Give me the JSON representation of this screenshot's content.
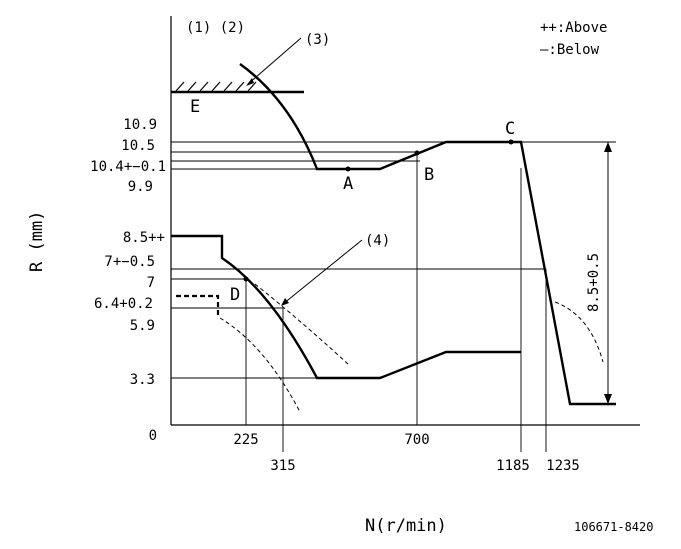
{
  "header": {
    "left": "(1) (2)",
    "callout_3": "(3)",
    "callout_4": "(4)"
  },
  "legend": {
    "above": "++:Above",
    "below": "—:Below"
  },
  "axes": {
    "y_title": "R (mm)",
    "x_title": "N(r/min)",
    "origin": "0"
  },
  "y_labels": [
    "10.9",
    "10.5",
    "10.4+−0.1",
    "9.9",
    "8.5++",
    "7+−0.5",
    "7",
    "6.4+0.2",
    "5.9",
    "3.3"
  ],
  "x_labels": [
    "225",
    "315",
    "700",
    "1185",
    "1235"
  ],
  "points": {
    "A": "A",
    "B": "B",
    "C": "C",
    "D": "D",
    "E": "E"
  },
  "dimension": "8.5+0.5",
  "drawing_number": "106671-8420"
}
